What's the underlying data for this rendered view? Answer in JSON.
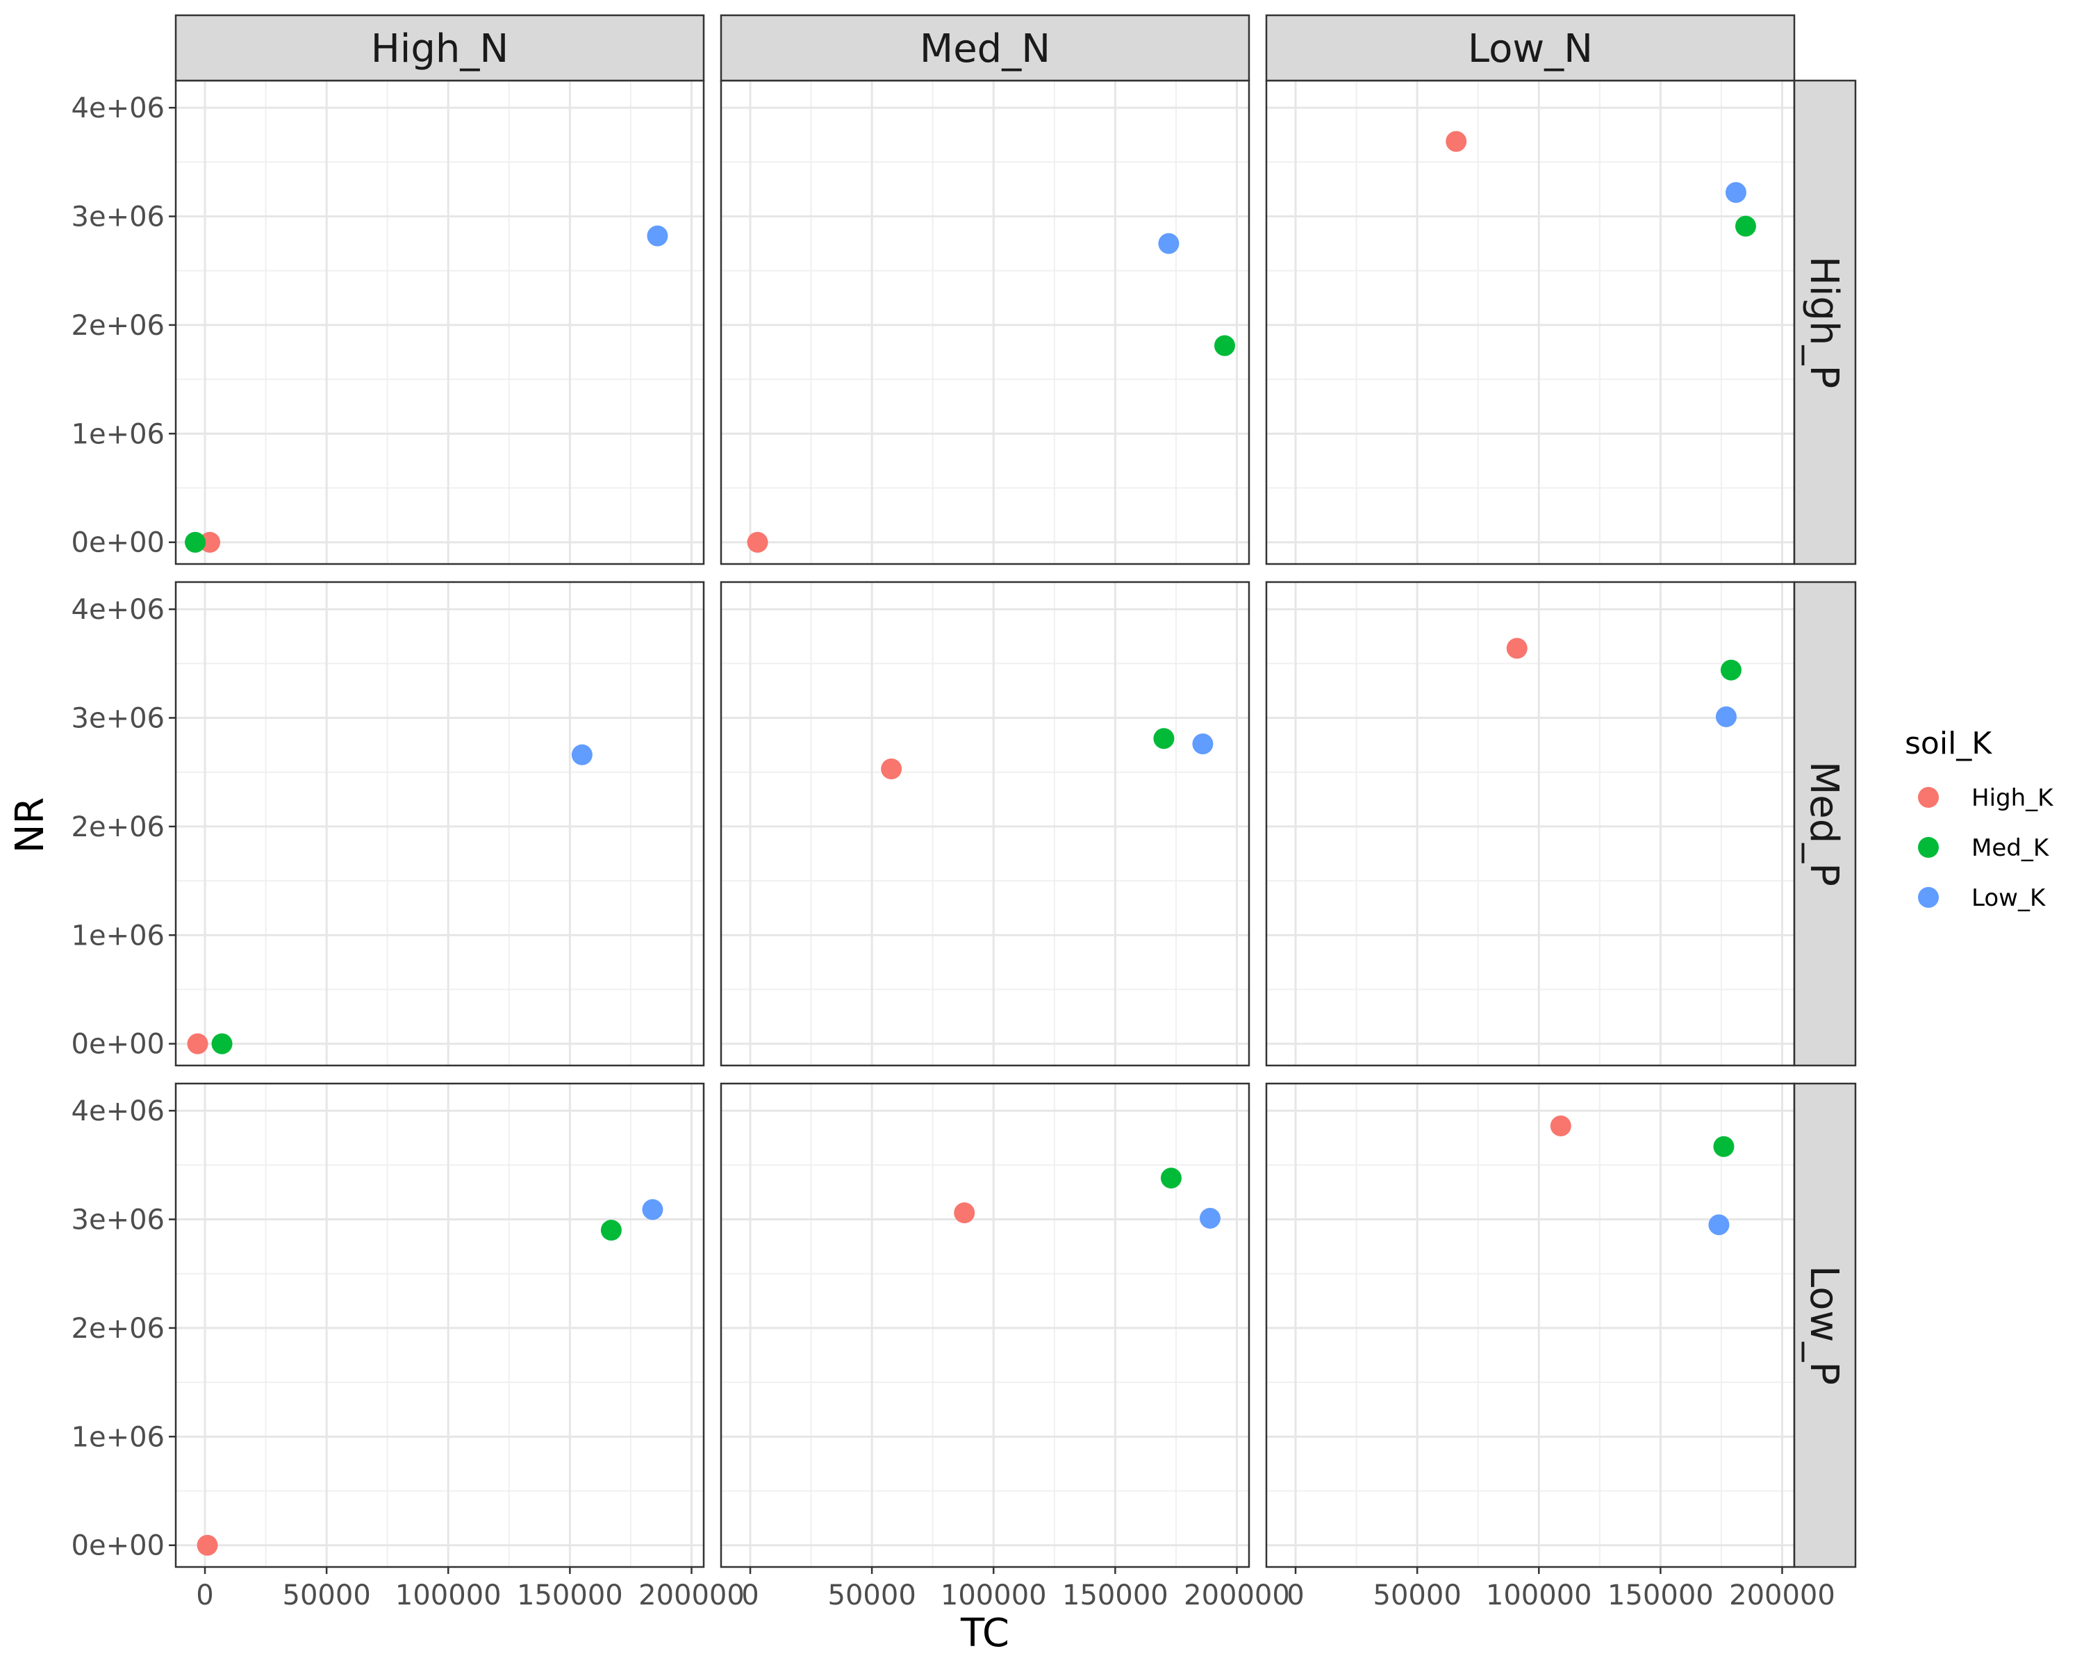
{
  "chart_data": {
    "type": "scatter",
    "facet_columns": [
      "High_N",
      "Med_N",
      "Low_N"
    ],
    "facet_rows": [
      "High_P",
      "Med_P",
      "Low_P"
    ],
    "xlabel": "TC",
    "ylabel": "NR",
    "xlim": [
      -12000,
      205000
    ],
    "ylim": [
      -200000,
      4250000
    ],
    "x_ticks": [
      0,
      50000,
      100000,
      150000,
      200000
    ],
    "x_tick_labels": [
      "0",
      "50000",
      "100000",
      "150000",
      "200000"
    ],
    "y_ticks": [
      0,
      1000000,
      2000000,
      3000000,
      4000000
    ],
    "y_tick_labels": [
      "0e+00",
      "1e+06",
      "2e+06",
      "3e+06",
      "4e+06"
    ],
    "legend": {
      "title": "soil_K",
      "position": "right",
      "entries": [
        {
          "label": "High_K",
          "color": "#F8766D"
        },
        {
          "label": "Med_K",
          "color": "#00BA38"
        },
        {
          "label": "Low_K",
          "color": "#619CFF"
        }
      ]
    },
    "grid": true,
    "panels": [
      {
        "row": "High_P",
        "col": "High_N",
        "points": [
          {
            "soil_K": "High_K",
            "x": 2000,
            "y": 0
          },
          {
            "soil_K": "Med_K",
            "x": -4000,
            "y": 0
          },
          {
            "soil_K": "Low_K",
            "x": 186000,
            "y": 2820000
          }
        ]
      },
      {
        "row": "High_P",
        "col": "Med_N",
        "points": [
          {
            "soil_K": "High_K",
            "x": 3000,
            "y": 0
          },
          {
            "soil_K": "Med_K",
            "x": 195000,
            "y": 1810000
          },
          {
            "soil_K": "Low_K",
            "x": 172000,
            "y": 2750000
          }
        ]
      },
      {
        "row": "High_P",
        "col": "Low_N",
        "points": [
          {
            "soil_K": "High_K",
            "x": 66000,
            "y": 3690000
          },
          {
            "soil_K": "Med_K",
            "x": 185000,
            "y": 2910000
          },
          {
            "soil_K": "Low_K",
            "x": 181000,
            "y": 3220000
          }
        ]
      },
      {
        "row": "Med_P",
        "col": "High_N",
        "points": [
          {
            "soil_K": "High_K",
            "x": -3000,
            "y": 0
          },
          {
            "soil_K": "Med_K",
            "x": 7000,
            "y": 0
          },
          {
            "soil_K": "Low_K",
            "x": 155000,
            "y": 2660000
          }
        ]
      },
      {
        "row": "Med_P",
        "col": "Med_N",
        "points": [
          {
            "soil_K": "High_K",
            "x": 58000,
            "y": 2530000
          },
          {
            "soil_K": "Med_K",
            "x": 170000,
            "y": 2810000
          },
          {
            "soil_K": "Low_K",
            "x": 186000,
            "y": 2760000
          }
        ]
      },
      {
        "row": "Med_P",
        "col": "Low_N",
        "points": [
          {
            "soil_K": "High_K",
            "x": 91000,
            "y": 3640000
          },
          {
            "soil_K": "Med_K",
            "x": 179000,
            "y": 3440000
          },
          {
            "soil_K": "Low_K",
            "x": 177000,
            "y": 3010000
          }
        ]
      },
      {
        "row": "Low_P",
        "col": "High_N",
        "points": [
          {
            "soil_K": "High_K",
            "x": 1000,
            "y": 0
          },
          {
            "soil_K": "Med_K",
            "x": 167000,
            "y": 2900000
          },
          {
            "soil_K": "Low_K",
            "x": 184000,
            "y": 3090000
          }
        ]
      },
      {
        "row": "Low_P",
        "col": "Med_N",
        "points": [
          {
            "soil_K": "High_K",
            "x": 88000,
            "y": 3060000
          },
          {
            "soil_K": "Med_K",
            "x": 173000,
            "y": 3380000
          },
          {
            "soil_K": "Low_K",
            "x": 189000,
            "y": 3010000
          }
        ]
      },
      {
        "row": "Low_P",
        "col": "Low_N",
        "points": [
          {
            "soil_K": "High_K",
            "x": 109000,
            "y": 3860000
          },
          {
            "soil_K": "Med_K",
            "x": 176000,
            "y": 3670000
          },
          {
            "soil_K": "Low_K",
            "x": 174000,
            "y": 2950000
          }
        ]
      }
    ]
  }
}
